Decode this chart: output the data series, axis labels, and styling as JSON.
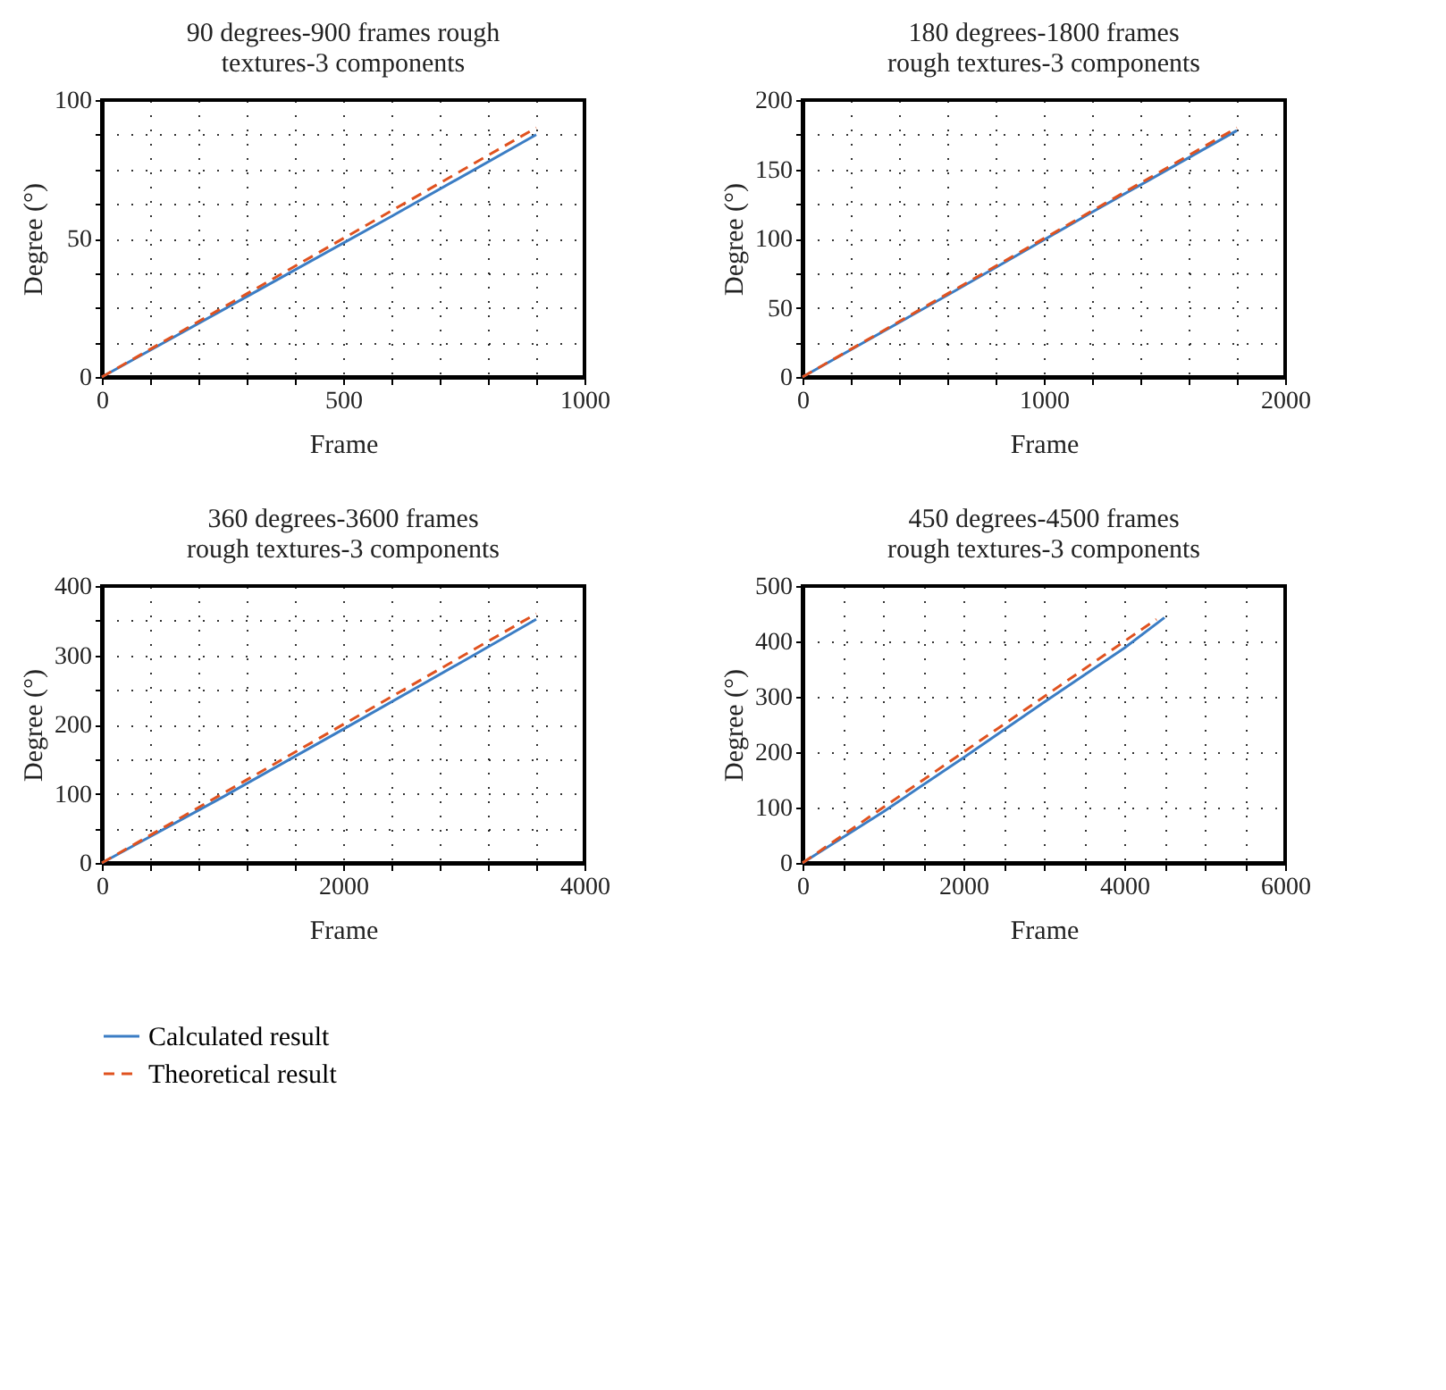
{
  "chart_data": [
    {
      "type": "line",
      "title": "90 degrees-900 frames rough textures-3 components",
      "xlabel": "Frame",
      "ylabel": "Degree (°)",
      "xlim": [
        0,
        1000
      ],
      "ylim": [
        0,
        100
      ],
      "xticks": [
        0,
        {
          "value": 100,
          "label": null
        },
        {
          "value": 200,
          "label": null
        },
        {
          "value": 300,
          "label": null
        },
        {
          "value": 400,
          "label": null
        },
        500,
        {
          "value": 600,
          "label": null
        },
        {
          "value": 700,
          "label": null
        },
        {
          "value": 800,
          "label": null
        },
        {
          "value": 900,
          "label": null
        },
        1000
      ],
      "yticks": [
        0,
        {
          "value": 12.5,
          "label": null
        },
        {
          "value": 25,
          "label": null
        },
        {
          "value": 37.5,
          "label": null
        },
        50,
        {
          "value": 62.5,
          "label": null
        },
        {
          "value": 75,
          "label": null
        },
        {
          "value": 87.5,
          "label": null
        },
        100
      ],
      "grid": true,
      "legend": "bottom left",
      "series": [
        {
          "name": "Calculated result",
          "color": "#3b7dc4",
          "line_style": "solid",
          "x": [
            0,
            300,
            600,
            900
          ],
          "values": [
            0,
            29,
            58,
            87.5
          ]
        },
        {
          "name": "Theoretical result",
          "color": "#e0521f",
          "line_style": "dashed",
          "x": [
            0,
            900
          ],
          "values": [
            0,
            90
          ]
        }
      ]
    },
    {
      "type": "line",
      "title": "180 degrees-1800 frames rough textures-3 components",
      "xlabel": "Frame",
      "ylabel": "Degree (°)",
      "xlim": [
        0,
        2000
      ],
      "ylim": [
        0,
        200
      ],
      "xticks": [
        0,
        {
          "value": 200,
          "label": null
        },
        {
          "value": 400,
          "label": null
        },
        {
          "value": 600,
          "label": null
        },
        {
          "value": 800,
          "label": null
        },
        1000,
        {
          "value": 1200,
          "label": null
        },
        {
          "value": 1400,
          "label": null
        },
        {
          "value": 1600,
          "label": null
        },
        {
          "value": 1800,
          "label": null
        },
        2000
      ],
      "yticks": [
        0,
        {
          "value": 25,
          "label": null
        },
        50,
        {
          "value": 75,
          "label": null
        },
        100,
        {
          "value": 125,
          "label": null
        },
        150,
        {
          "value": 175,
          "label": null
        },
        200
      ],
      "grid": true,
      "series": [
        {
          "name": "Calculated result",
          "color": "#3b7dc4",
          "line_style": "solid",
          "x": [
            0,
            600,
            1200,
            1800
          ],
          "values": [
            0,
            59,
            119,
            178
          ]
        },
        {
          "name": "Theoretical result",
          "color": "#e0521f",
          "line_style": "dashed",
          "x": [
            0,
            1800
          ],
          "values": [
            0,
            180
          ]
        }
      ]
    },
    {
      "type": "line",
      "title": "360 degrees-3600 frames rough textures-3 components",
      "xlabel": "Frame",
      "ylabel": "Degree (°)",
      "xlim": [
        0,
        4000
      ],
      "ylim": [
        0,
        400
      ],
      "xticks": [
        0,
        {
          "value": 400,
          "label": null
        },
        {
          "value": 800,
          "label": null
        },
        {
          "value": 1200,
          "label": null
        },
        {
          "value": 1600,
          "label": null
        },
        2000,
        {
          "value": 2400,
          "label": null
        },
        {
          "value": 2800,
          "label": null
        },
        {
          "value": 3200,
          "label": null
        },
        {
          "value": 3600,
          "label": null
        },
        4000
      ],
      "yticks": [
        0,
        {
          "value": 50,
          "label": null
        },
        100,
        {
          "value": 150,
          "label": null
        },
        200,
        {
          "value": 250,
          "label": null
        },
        300,
        {
          "value": 350,
          "label": null
        },
        400
      ],
      "grid": true,
      "series": [
        {
          "name": "Calculated result",
          "color": "#3b7dc4",
          "line_style": "solid",
          "x": [
            0,
            1000,
            2000,
            3000,
            3600
          ],
          "values": [
            0,
            95,
            193,
            292,
            352
          ]
        },
        {
          "name": "Theoretical result",
          "color": "#e0521f",
          "line_style": "dashed",
          "x": [
            0,
            3600
          ],
          "values": [
            0,
            360
          ]
        }
      ]
    },
    {
      "type": "line",
      "title": "450 degrees-4500 frames rough textures-3 components",
      "xlabel": "Frame",
      "ylabel": "Degree (°)",
      "xlim": [
        0,
        6000
      ],
      "ylim": [
        0,
        500
      ],
      "xticks": [
        0,
        {
          "value": 500,
          "label": null
        },
        {
          "value": 1000,
          "label": null
        },
        {
          "value": 1500,
          "label": null
        },
        2000,
        {
          "value": 2500,
          "label": null
        },
        {
          "value": 3000,
          "label": null
        },
        {
          "value": 3500,
          "label": null
        },
        4000,
        {
          "value": 4500,
          "label": null
        },
        {
          "value": 5000,
          "label": null
        },
        {
          "value": 5500,
          "label": null
        },
        6000
      ],
      "yticks": [
        0,
        100,
        200,
        300,
        400,
        500
      ],
      "grid": true,
      "series": [
        {
          "name": "Calculated result",
          "color": "#3b7dc4",
          "line_style": "solid",
          "x": [
            0,
            1000,
            2000,
            3000,
            4000,
            4500
          ],
          "values": [
            0,
            92,
            190,
            290,
            388,
            443
          ]
        },
        {
          "name": "Theoretical result",
          "color": "#e0521f",
          "line_style": "dashed",
          "x": [
            0,
            4400
          ],
          "values": [
            0,
            440
          ]
        }
      ]
    }
  ]
}
